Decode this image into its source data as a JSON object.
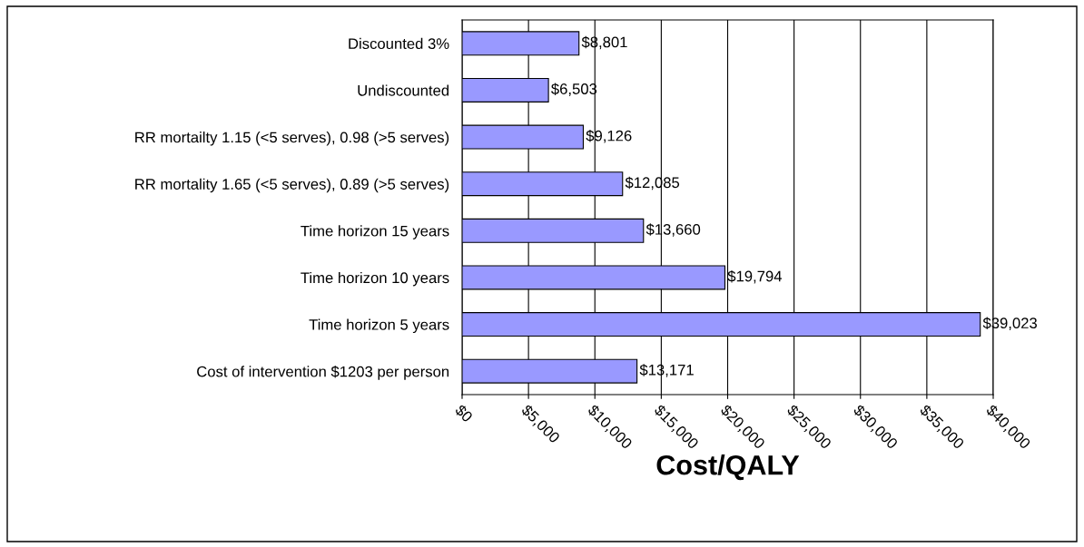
{
  "chart_data": {
    "type": "bar",
    "orientation": "horizontal",
    "xlabel": "Cost/QALY",
    "categories": [
      "Discounted 3%",
      "Undiscounted",
      "RR mortailty 1.15 (<5 serves), 0.98 (>5 serves)",
      "RR mortality 1.65 (<5 serves), 0.89 (>5 serves)",
      "Time horizon 15 years",
      "Time horizon 10 years",
      "Time horizon 5 years",
      "Cost of intervention $1203 per person"
    ],
    "values": [
      8801,
      6503,
      9126,
      12085,
      13660,
      19794,
      39023,
      13171
    ],
    "value_labels": [
      "$8,801",
      "$6,503",
      "$9,126",
      "$12,085",
      "$13,660",
      "$19,794",
      "$39,023",
      "$13,171"
    ],
    "color": "#9999ff",
    "xlim": [
      0,
      40000
    ],
    "xticks": [
      {
        "value": 0,
        "label": "$0"
      },
      {
        "value": 5000,
        "label": "$5,000"
      },
      {
        "value": 10000,
        "label": "$10,000"
      },
      {
        "value": 15000,
        "label": "$15,000"
      },
      {
        "value": 20000,
        "label": "$20,000"
      },
      {
        "value": 25000,
        "label": "$25,000"
      },
      {
        "value": 30000,
        "label": "$30,000"
      },
      {
        "value": 35000,
        "label": "$35,000"
      },
      {
        "value": 40000,
        "label": "$40,000"
      }
    ],
    "grid": "x",
    "legend": false
  }
}
